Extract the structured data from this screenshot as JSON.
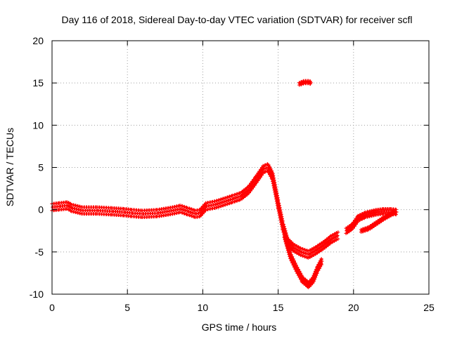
{
  "chart_data": {
    "type": "scatter",
    "title": "Day 116 of 2018, Sidereal Day-to-day VTEC variation (SDTVAR) for receiver scfl",
    "xlabel": "GPS time / hours",
    "ylabel": "SDTVAR / TECUs",
    "xlim": [
      0,
      25
    ],
    "ylim": [
      -10,
      20
    ],
    "xticks": [
      0,
      5,
      10,
      15,
      20,
      25
    ],
    "yticks": [
      -10,
      -5,
      0,
      5,
      10,
      15,
      20
    ],
    "grid": true,
    "marker": "+",
    "color": "#ff0000",
    "series": [
      {
        "name": "main",
        "band_width": 0.8,
        "points": [
          [
            0.0,
            0.3
          ],
          [
            0.5,
            0.4
          ],
          [
            1.0,
            0.5
          ],
          [
            1.3,
            0.2
          ],
          [
            2.0,
            -0.1
          ],
          [
            3.0,
            -0.1
          ],
          [
            4.0,
            -0.2
          ],
          [
            4.8,
            -0.3
          ],
          [
            5.3,
            -0.4
          ],
          [
            6.0,
            -0.5
          ],
          [
            7.0,
            -0.4
          ],
          [
            8.0,
            -0.1
          ],
          [
            8.5,
            0.1
          ],
          [
            9.0,
            -0.2
          ],
          [
            9.5,
            -0.5
          ],
          [
            9.8,
            -0.4
          ],
          [
            10.2,
            0.4
          ],
          [
            10.8,
            0.6
          ],
          [
            11.5,
            1.0
          ],
          [
            12.0,
            1.3
          ],
          [
            12.5,
            1.6
          ],
          [
            13.0,
            2.3
          ],
          [
            13.5,
            3.5
          ],
          [
            14.0,
            4.8
          ],
          [
            14.3,
            5.0
          ],
          [
            14.6,
            4.0
          ],
          [
            15.0,
            0.5
          ],
          [
            15.3,
            -2.0
          ],
          [
            15.6,
            -3.8
          ],
          [
            16.0,
            -4.5
          ],
          [
            16.5,
            -5.0
          ],
          [
            17.0,
            -5.3
          ],
          [
            17.5,
            -4.8
          ],
          [
            18.0,
            -4.2
          ],
          [
            18.5,
            -3.5
          ],
          [
            19.0,
            -3.0
          ]
        ]
      },
      {
        "name": "lower-branch",
        "band_width": 0.6,
        "points": [
          [
            15.4,
            -3.0
          ],
          [
            15.8,
            -5.5
          ],
          [
            16.2,
            -7.0
          ],
          [
            16.6,
            -8.3
          ],
          [
            17.0,
            -8.9
          ],
          [
            17.3,
            -8.3
          ],
          [
            17.6,
            -7.0
          ],
          [
            17.9,
            -6.0
          ]
        ]
      },
      {
        "name": "evening",
        "band_width": 0.6,
        "points": [
          [
            19.5,
            -2.5
          ],
          [
            19.9,
            -2.0
          ],
          [
            20.3,
            -1.0
          ],
          [
            20.8,
            -0.6
          ],
          [
            21.5,
            -0.3
          ],
          [
            22.0,
            -0.2
          ],
          [
            22.5,
            -0.2
          ],
          [
            22.9,
            -0.3
          ]
        ]
      },
      {
        "name": "evening-lower",
        "band_width": 0.3,
        "points": [
          [
            20.5,
            -2.5
          ],
          [
            21.0,
            -2.2
          ],
          [
            21.5,
            -1.6
          ],
          [
            22.0,
            -1.0
          ],
          [
            22.5,
            -0.5
          ],
          [
            22.8,
            -0.3
          ]
        ]
      },
      {
        "name": "outlier",
        "band_width": 0.3,
        "points": [
          [
            16.4,
            14.9
          ],
          [
            16.7,
            15.1
          ],
          [
            17.0,
            15.1
          ],
          [
            17.2,
            15.0
          ]
        ]
      }
    ]
  }
}
